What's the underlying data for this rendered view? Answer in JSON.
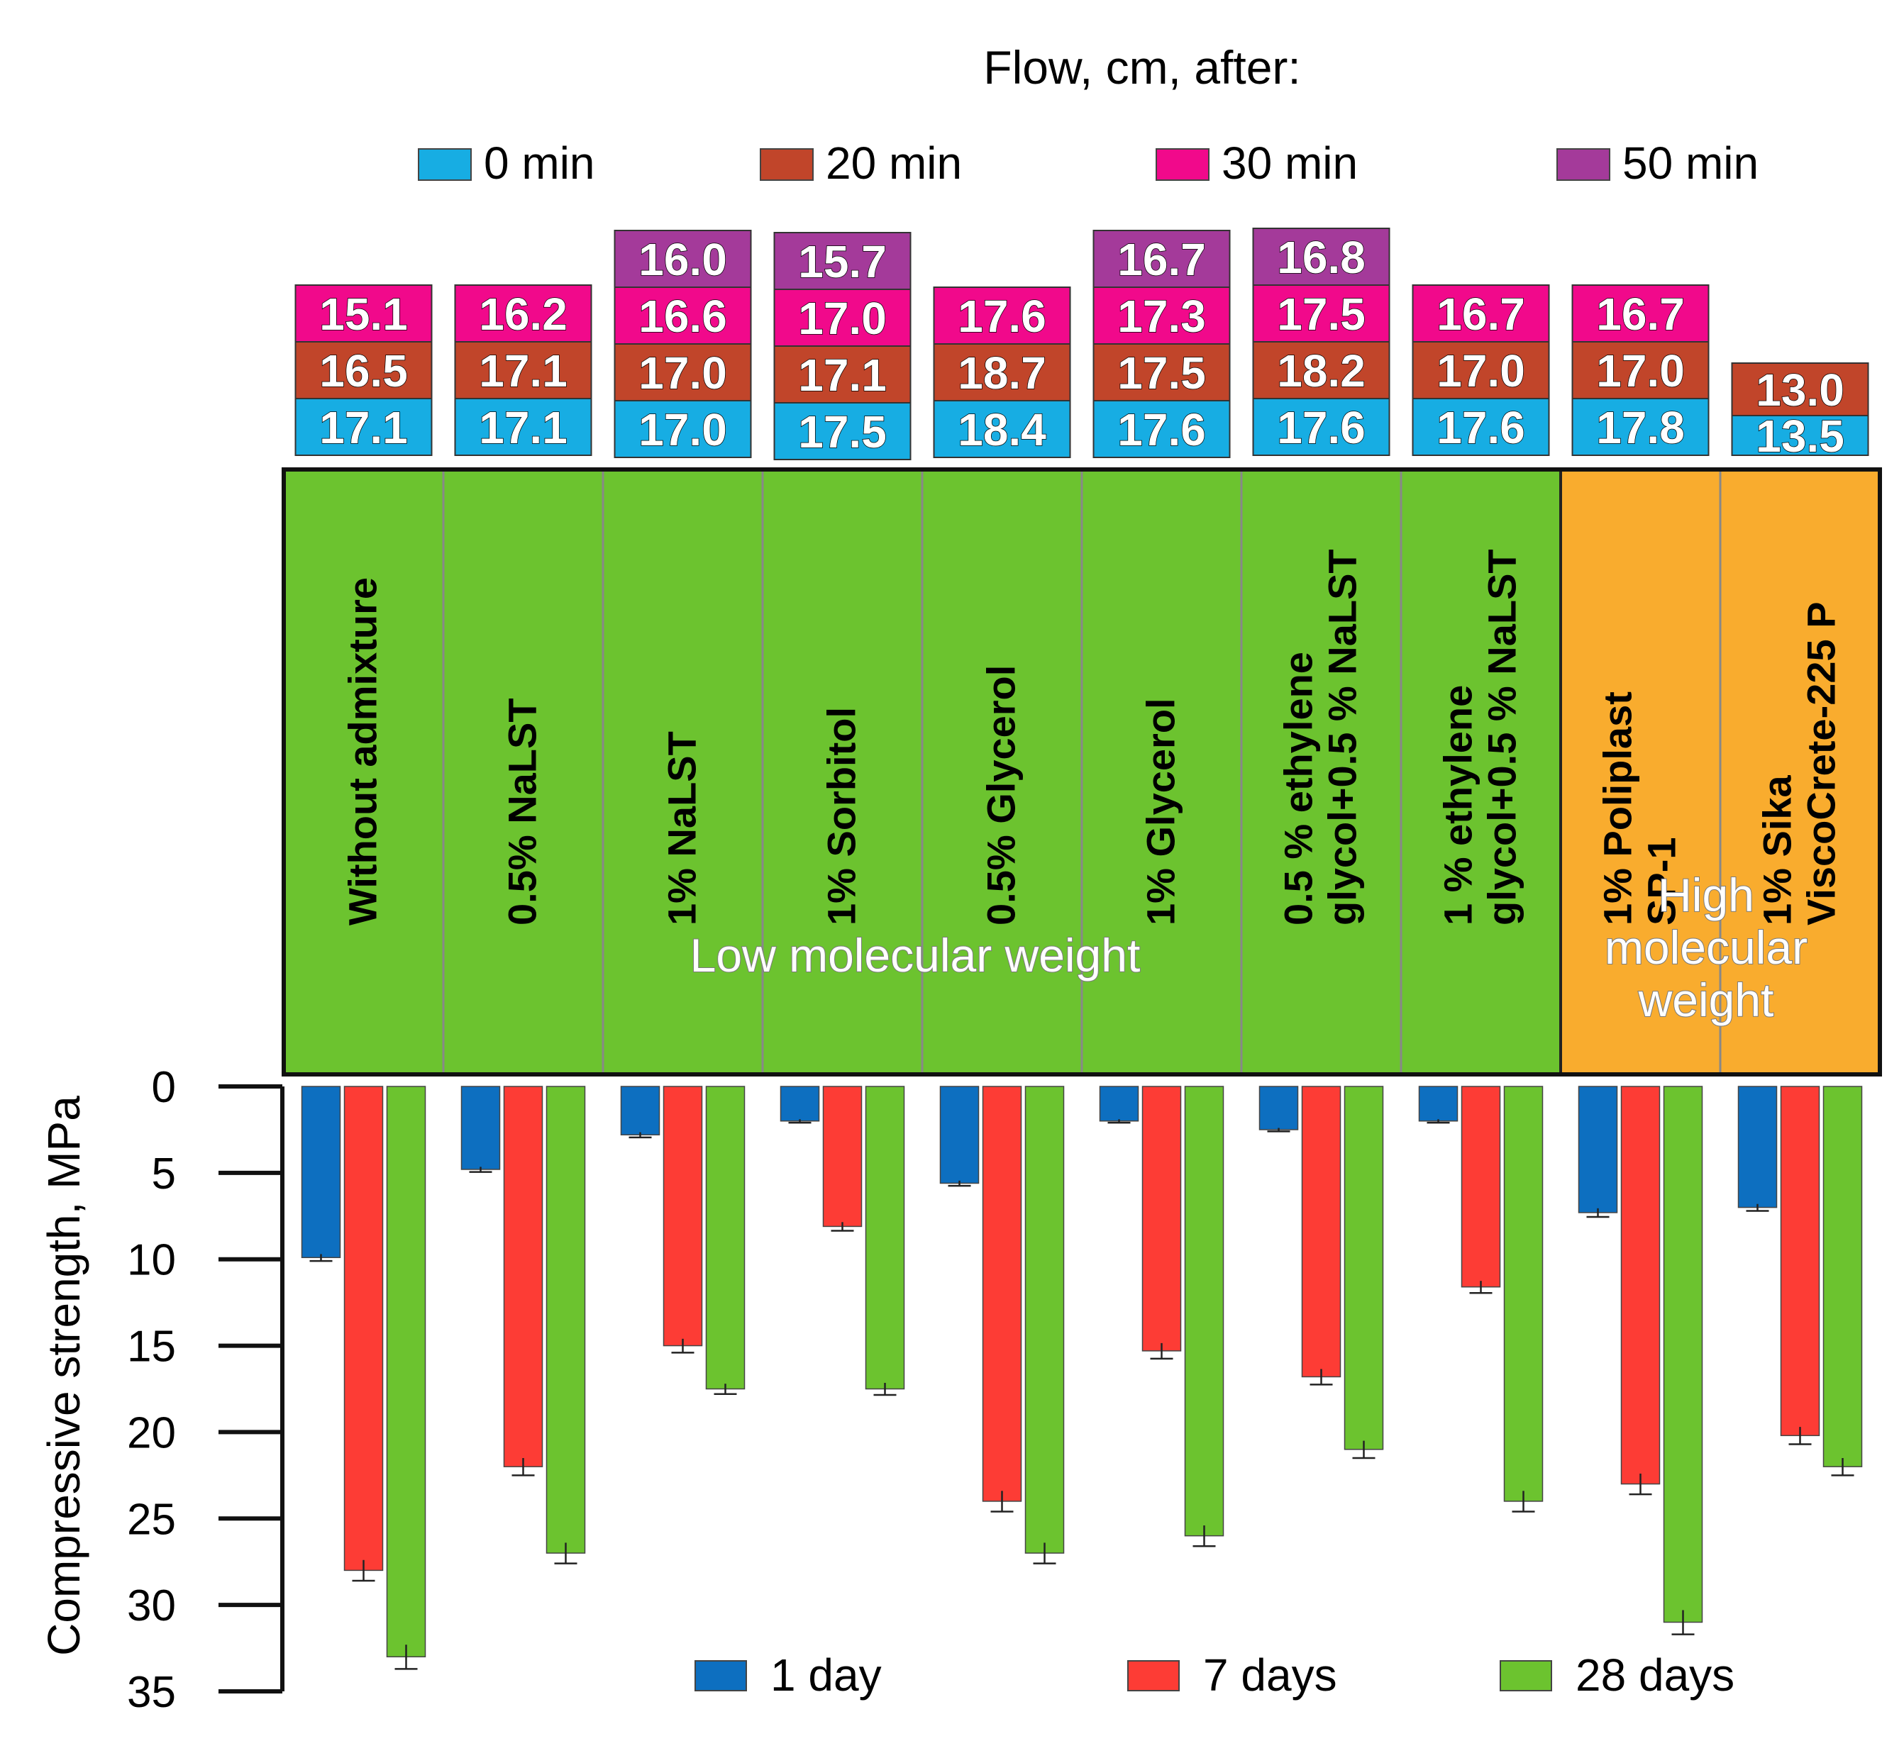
{
  "chart_data": {
    "type": "bar",
    "flow_title": "Flow, cm, after:",
    "ylabel": "Compressive strength, MPa",
    "ylim": [
      0,
      35
    ],
    "y_ticks": [
      "0",
      "5",
      "10",
      "15",
      "20",
      "25",
      "30",
      "35"
    ],
    "y_inverted": true,
    "categories": [
      [
        "Without admixture"
      ],
      [
        "0.5% NaLST"
      ],
      [
        "1% NaLST"
      ],
      [
        "1% Sorbitol"
      ],
      [
        "0.5% Glycerol"
      ],
      [
        "1% Glycerol"
      ],
      [
        "0.5 % ethylene",
        "glycol+0.5 % NaLST"
      ],
      [
        "1 % ethylene",
        "glycol+0.5 % NaLST"
      ],
      [
        "1% Poliplast",
        "SP-1"
      ],
      [
        "1% Sika",
        "ViscoCrete-225 P"
      ]
    ],
    "groups": [
      {
        "label": [
          "Low molecular weight"
        ],
        "start": 0,
        "end": 7,
        "color": "#6cc32f"
      },
      {
        "label": [
          "High",
          "molecular",
          "weight"
        ],
        "start": 8,
        "end": 9,
        "color": "#f9ac2e"
      }
    ],
    "flow_series": [
      {
        "name": "0 min",
        "color": "#17ade3",
        "values": [
          "17.1",
          "17.1",
          "17.0",
          "17.5",
          "18.4",
          "17.6",
          "17.6",
          "17.6",
          "17.8",
          "13.5"
        ]
      },
      {
        "name": "20 min",
        "color": "#c1452a",
        "values": [
          "16.5",
          "17.1",
          "17.0",
          "17.1",
          "18.7",
          "17.5",
          "18.2",
          "17.0",
          "17.0",
          "13.0"
        ]
      },
      {
        "name": "30 min",
        "color": "#f1098b",
        "values": [
          "15.1",
          "16.2",
          "16.6",
          "17.0",
          "17.6",
          "17.3",
          "17.5",
          "16.7",
          "16.7",
          null
        ]
      },
      {
        "name": "50 min",
        "color": "#a43a9a",
        "values": [
          null,
          null,
          "16.0",
          "15.7",
          null,
          "16.7",
          "16.8",
          null,
          null,
          null
        ]
      }
    ],
    "strength_series": [
      {
        "name": "1 day",
        "color": "#0d6fc0",
        "values": [
          9.9,
          4.8,
          2.8,
          2.0,
          5.6,
          2.0,
          2.5,
          2.0,
          7.3,
          7.0
        ],
        "errors": [
          0.2,
          0.15,
          0.15,
          0.1,
          0.15,
          0.1,
          0.1,
          0.1,
          0.25,
          0.2
        ]
      },
      {
        "name": "7 days",
        "color": "#fd3c35",
        "values": [
          28.0,
          22.0,
          15.0,
          8.1,
          24.0,
          15.3,
          16.8,
          11.6,
          23.0,
          20.2
        ],
        "errors": [
          0.6,
          0.5,
          0.4,
          0.25,
          0.6,
          0.45,
          0.45,
          0.35,
          0.6,
          0.5
        ]
      },
      {
        "name": "28 days",
        "color": "#6cc32f",
        "values": [
          33.0,
          27.0,
          17.5,
          17.5,
          27.0,
          26.0,
          21.0,
          24.0,
          31.0,
          22.0
        ],
        "errors": [
          0.7,
          0.6,
          0.3,
          0.35,
          0.6,
          0.6,
          0.5,
          0.6,
          0.7,
          0.5
        ]
      }
    ]
  }
}
